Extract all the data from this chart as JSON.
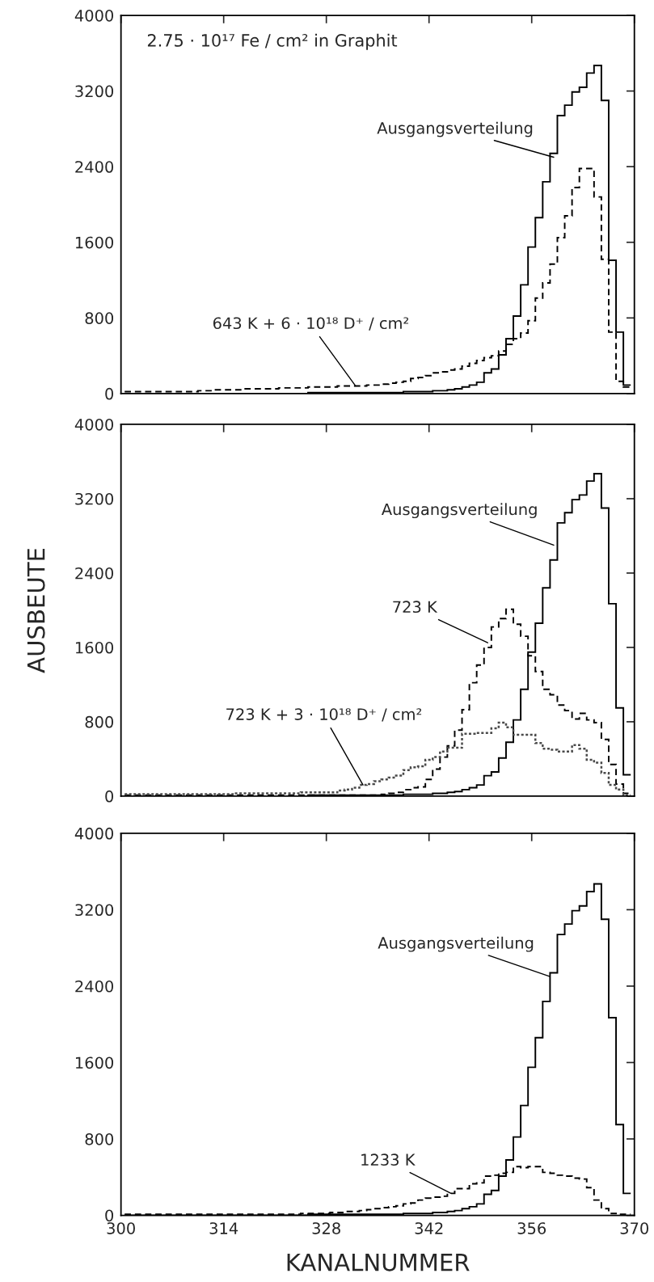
{
  "chart_data": [
    {
      "type": "histogram",
      "bins": [
        300.5,
        301.5,
        302.5,
        303.5,
        304.5,
        305.5,
        306.5,
        307.5,
        308.5,
        309.5,
        310.5,
        311.5,
        312.5,
        313.5,
        314.5,
        315.5,
        316.5,
        317.5,
        318.5,
        319.5,
        320.5,
        321.5,
        322.5,
        323.5,
        324.5,
        325.5,
        326.5,
        327.5,
        328.5,
        329.5,
        330.5,
        331.5,
        332.5,
        333.5,
        334.5,
        335.5,
        336.5,
        337.5,
        338.5,
        339.5,
        340.5,
        341.5,
        342.5,
        343.5,
        344.5,
        345.5,
        346.5,
        347.5,
        348.5,
        349.5,
        350.5,
        351.5,
        352.5,
        353.5,
        354.5,
        355.5,
        356.5,
        357.5,
        358.5,
        359.5,
        360.5,
        361.5,
        362.5,
        363.5,
        364.5,
        365.5,
        366.5,
        367.5,
        368.5,
        369.5
      ],
      "series": [
        {
          "color": "#000000",
          "line_style": "solid",
          "values": [
            0,
            0,
            0,
            0,
            0,
            0,
            0,
            0,
            0,
            0,
            0,
            0,
            0,
            0,
            0,
            0,
            0,
            0,
            0,
            0,
            0,
            0,
            0,
            0,
            0,
            10,
            10,
            10,
            10,
            10,
            10,
            10,
            10,
            10,
            10,
            10,
            10,
            10,
            20,
            20,
            20,
            20,
            30,
            30,
            40,
            50,
            70,
            90,
            120,
            220,
            260,
            410,
            580,
            820,
            1150,
            1550,
            1860,
            2240,
            2540,
            2940,
            3050,
            3190,
            3240,
            3390,
            3470,
            3100,
            1410,
            650,
            90
          ]
        },
        {
          "color": "#000000",
          "line_style": "dashed",
          "values": [
            20,
            20,
            20,
            20,
            20,
            20,
            20,
            20,
            20,
            20,
            30,
            30,
            40,
            40,
            40,
            40,
            50,
            50,
            50,
            50,
            50,
            60,
            60,
            60,
            60,
            70,
            70,
            70,
            70,
            80,
            80,
            80,
            80,
            90,
            90,
            100,
            110,
            120,
            130,
            160,
            170,
            190,
            220,
            230,
            250,
            260,
            290,
            320,
            350,
            380,
            400,
            450,
            520,
            580,
            640,
            770,
            1010,
            1170,
            1370,
            1650,
            1880,
            2180,
            2380,
            2380,
            2080,
            1420,
            650,
            130,
            70
          ]
        }
      ],
      "xlim": [
        300,
        370
      ],
      "ylim": [
        0,
        4000
      ],
      "xticks": [
        300,
        314,
        328,
        342,
        356,
        370
      ],
      "yticks": [
        0,
        800,
        1600,
        2400,
        3200,
        4000
      ],
      "tick_labels": "y",
      "annotations": [
        "2.75 · 10¹⁷ Fe / cm² in Graphit",
        {
          "text": "Ausgangsverteilung",
          "x": 359,
          "y": 2500
        },
        {
          "text": "643 K + 6 · 10¹⁸ D⁺ / cm²",
          "x": 332,
          "y": 80
        }
      ]
    },
    {
      "type": "histogram",
      "bins": [
        300.5,
        301.5,
        302.5,
        303.5,
        304.5,
        305.5,
        306.5,
        307.5,
        308.5,
        309.5,
        310.5,
        311.5,
        312.5,
        313.5,
        314.5,
        315.5,
        316.5,
        317.5,
        318.5,
        319.5,
        320.5,
        321.5,
        322.5,
        323.5,
        324.5,
        325.5,
        326.5,
        327.5,
        328.5,
        329.5,
        330.5,
        331.5,
        332.5,
        333.5,
        334.5,
        335.5,
        336.5,
        337.5,
        338.5,
        339.5,
        340.5,
        341.5,
        342.5,
        343.5,
        344.5,
        345.5,
        346.5,
        347.5,
        348.5,
        349.5,
        350.5,
        351.5,
        352.5,
        353.5,
        354.5,
        355.5,
        356.5,
        357.5,
        358.5,
        359.5,
        360.5,
        361.5,
        362.5,
        363.5,
        364.5,
        365.5,
        366.5,
        367.5,
        368.5,
        369.5
      ],
      "series": [
        {
          "color": "#000000",
          "line_style": "solid",
          "values": [
            0,
            0,
            0,
            0,
            0,
            0,
            0,
            0,
            0,
            0,
            0,
            0,
            0,
            0,
            0,
            0,
            0,
            0,
            0,
            0,
            0,
            0,
            0,
            0,
            0,
            10,
            10,
            10,
            10,
            10,
            10,
            10,
            10,
            10,
            10,
            10,
            10,
            10,
            20,
            20,
            20,
            20,
            30,
            30,
            40,
            50,
            70,
            90,
            120,
            220,
            260,
            410,
            580,
            820,
            1150,
            1550,
            1860,
            2240,
            2540,
            2940,
            3050,
            3190,
            3240,
            3390,
            3470,
            3100,
            2070,
            950,
            230
          ]
        },
        {
          "color": "#000000",
          "line_style": "dashed",
          "values": [
            10,
            10,
            10,
            10,
            10,
            10,
            10,
            10,
            10,
            10,
            10,
            10,
            10,
            10,
            10,
            10,
            10,
            10,
            10,
            10,
            10,
            10,
            10,
            10,
            10,
            10,
            10,
            10,
            10,
            10,
            10,
            10,
            10,
            10,
            10,
            20,
            30,
            40,
            70,
            90,
            100,
            180,
            290,
            420,
            540,
            710,
            930,
            1220,
            1410,
            1600,
            1820,
            1910,
            2010,
            1850,
            1720,
            1510,
            1340,
            1150,
            1090,
            980,
            920,
            830,
            890,
            820,
            790,
            610,
            340,
            130,
            30
          ]
        },
        {
          "color": "#4a4a4a",
          "line_style": "dotted",
          "values": [
            20,
            20,
            20,
            20,
            20,
            20,
            20,
            20,
            20,
            20,
            20,
            20,
            20,
            20,
            20,
            30,
            30,
            30,
            30,
            30,
            30,
            30,
            30,
            30,
            40,
            40,
            40,
            40,
            40,
            60,
            70,
            90,
            120,
            130,
            160,
            180,
            200,
            220,
            280,
            310,
            320,
            390,
            420,
            480,
            520,
            520,
            670,
            670,
            680,
            680,
            730,
            790,
            740,
            660,
            660,
            660,
            570,
            510,
            500,
            480,
            480,
            550,
            510,
            390,
            360,
            250,
            120,
            70,
            10
          ]
        }
      ],
      "xlim": [
        300,
        370
      ],
      "ylim": [
        0,
        4000
      ],
      "xticks": [
        300,
        314,
        328,
        342,
        356,
        370
      ],
      "yticks": [
        0,
        800,
        1600,
        2400,
        3200,
        4000
      ],
      "tick_labels": "y",
      "ylabel": "AUSBEUTE",
      "annotations": [
        {
          "text": "Ausgangsverteilung",
          "x": 359,
          "y": 2700
        },
        {
          "text": "723 K",
          "x": 350,
          "y": 1650
        },
        {
          "text": "723 K + 3 · 10¹⁸ D⁺ / cm²",
          "x": 333,
          "y": 120
        }
      ]
    },
    {
      "type": "histogram",
      "bins": [
        300.5,
        301.5,
        302.5,
        303.5,
        304.5,
        305.5,
        306.5,
        307.5,
        308.5,
        309.5,
        310.5,
        311.5,
        312.5,
        313.5,
        314.5,
        315.5,
        316.5,
        317.5,
        318.5,
        319.5,
        320.5,
        321.5,
        322.5,
        323.5,
        324.5,
        325.5,
        326.5,
        327.5,
        328.5,
        329.5,
        330.5,
        331.5,
        332.5,
        333.5,
        334.5,
        335.5,
        336.5,
        337.5,
        338.5,
        339.5,
        340.5,
        341.5,
        342.5,
        343.5,
        344.5,
        345.5,
        346.5,
        347.5,
        348.5,
        349.5,
        350.5,
        351.5,
        352.5,
        353.5,
        354.5,
        355.5,
        356.5,
        357.5,
        358.5,
        359.5,
        360.5,
        361.5,
        362.5,
        363.5,
        364.5,
        365.5,
        366.5,
        367.5,
        368.5,
        369.5
      ],
      "series": [
        {
          "color": "#000000",
          "line_style": "solid",
          "values": [
            0,
            0,
            0,
            0,
            0,
            0,
            0,
            0,
            0,
            0,
            0,
            0,
            0,
            0,
            0,
            0,
            0,
            0,
            0,
            0,
            0,
            0,
            0,
            0,
            0,
            10,
            10,
            10,
            10,
            10,
            10,
            10,
            10,
            10,
            10,
            10,
            10,
            10,
            20,
            20,
            20,
            20,
            30,
            30,
            40,
            50,
            70,
            90,
            120,
            220,
            260,
            410,
            580,
            820,
            1150,
            1550,
            1860,
            2240,
            2540,
            2940,
            3050,
            3190,
            3240,
            3390,
            3470,
            3100,
            2070,
            950,
            230
          ]
        },
        {
          "color": "#000000",
          "line_style": "dashed",
          "values": [
            10,
            10,
            10,
            10,
            10,
            10,
            10,
            10,
            10,
            10,
            10,
            10,
            10,
            10,
            10,
            10,
            10,
            10,
            10,
            10,
            10,
            10,
            10,
            10,
            20,
            20,
            20,
            20,
            30,
            30,
            40,
            40,
            50,
            60,
            70,
            80,
            90,
            100,
            120,
            130,
            160,
            180,
            190,
            200,
            230,
            280,
            280,
            330,
            340,
            410,
            420,
            440,
            450,
            510,
            500,
            510,
            510,
            450,
            440,
            420,
            410,
            390,
            380,
            290,
            160,
            70,
            20,
            10,
            10
          ]
        }
      ],
      "xlim": [
        300,
        370
      ],
      "ylim": [
        0,
        4000
      ],
      "xticks": [
        300,
        314,
        328,
        342,
        356,
        370
      ],
      "yticks": [
        0,
        800,
        1600,
        2400,
        3200,
        4000
      ],
      "xlabel": "KANALNUMMER",
      "annotations": [
        {
          "text": "Ausgangsverteilung",
          "x": 358.5,
          "y": 2500
        },
        {
          "text": "1233 K",
          "x": 345,
          "y": 230
        }
      ]
    }
  ]
}
